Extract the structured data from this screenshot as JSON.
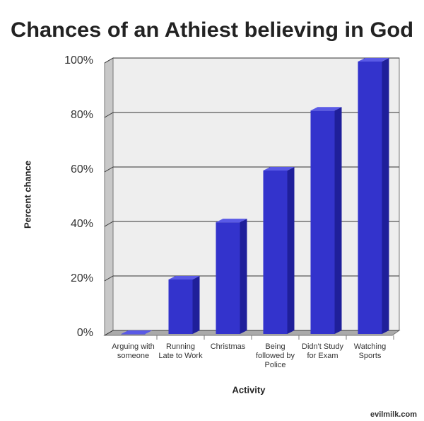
{
  "chart_data": {
    "type": "bar3d",
    "title": "Chances of an Athiest believing in God",
    "categories": [
      "Arguing with someone",
      "Running Late to Work",
      "Christmas",
      "Being followed by Police",
      "Didn't Study for Exam",
      "Watching Sports"
    ],
    "values": [
      0,
      20,
      41,
      60,
      82,
      100
    ],
    "color": "#3333cc",
    "ylim": [
      0,
      100
    ],
    "yticks": [
      {
        "value": 0,
        "label": "0%"
      },
      {
        "value": 20,
        "label": "20%"
      },
      {
        "value": 40,
        "label": "40%"
      },
      {
        "value": 60,
        "label": "60%"
      },
      {
        "value": 80,
        "label": "80%"
      },
      {
        "value": 100,
        "label": "100%"
      }
    ],
    "grid": true,
    "ylabel": "Percent chance",
    "xlabel": "Activity",
    "watermark": "evilmilk.com"
  }
}
